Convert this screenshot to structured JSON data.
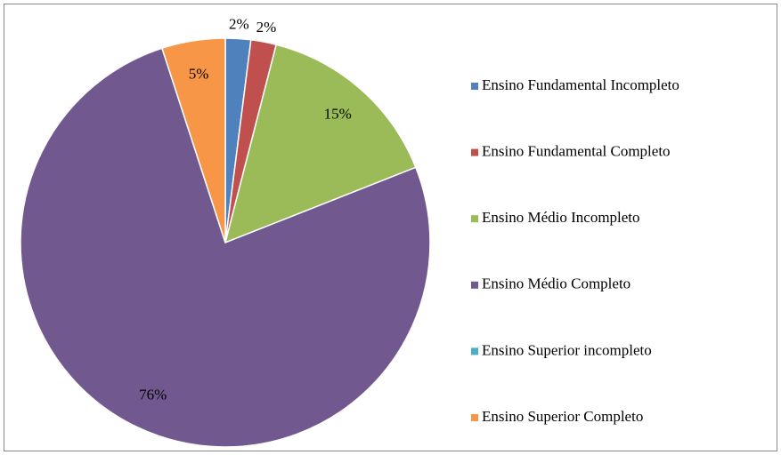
{
  "chart_data": {
    "type": "pie",
    "categories": [
      "Ensino Fundamental Incompleto",
      "Ensino Fundamental Completo",
      "Ensino Médio Incompleto",
      "Ensino Médio Completo",
      "Ensino Superior incompleto",
      "Ensino Superior Completo"
    ],
    "values": [
      2,
      2,
      15,
      76,
      0,
      5
    ],
    "value_labels": [
      "2%",
      "2%",
      "15%",
      "76%",
      null,
      "5%"
    ],
    "colors": [
      "#4f81bd",
      "#c0504d",
      "#9bbb59",
      "#71588f",
      "#4bacc6",
      "#f79646"
    ],
    "legend": "right"
  }
}
